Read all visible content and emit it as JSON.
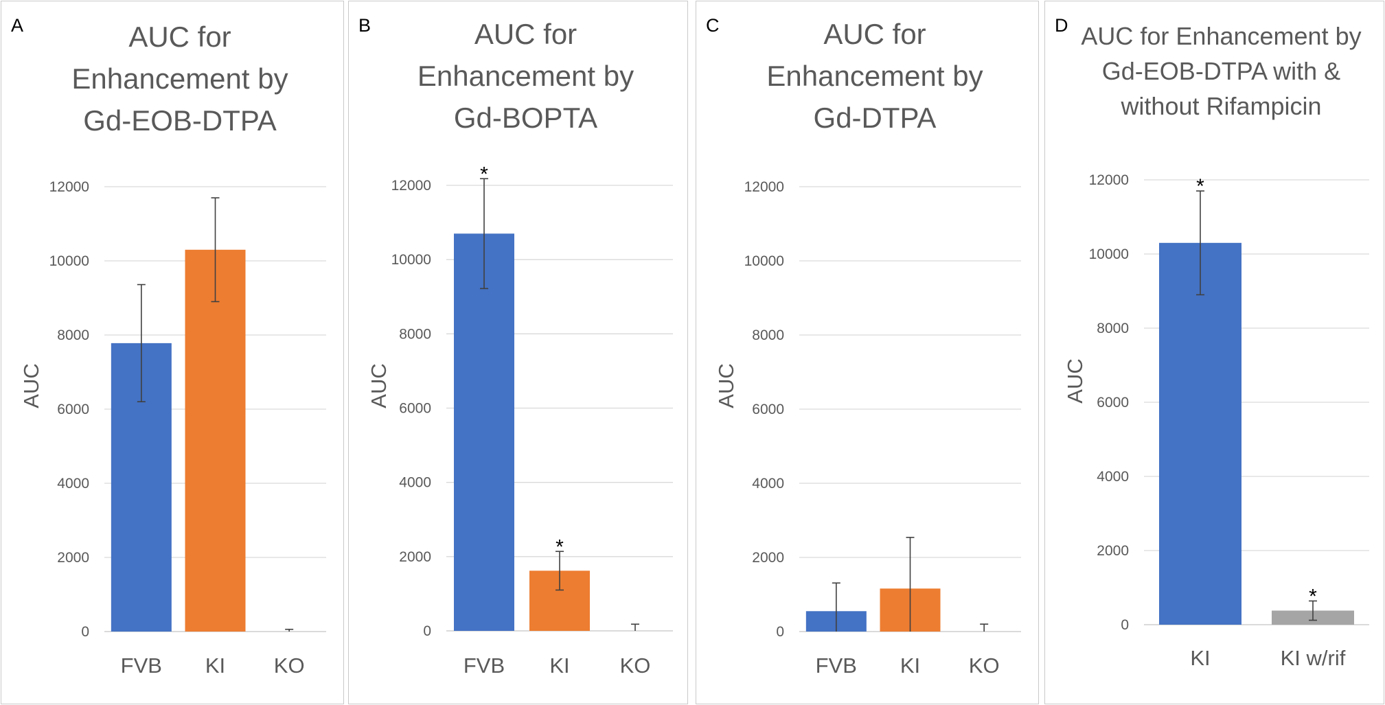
{
  "colors": {
    "fvb": "#4472C4",
    "ki": "#ED7D31",
    "gray": "#A5A5A5",
    "grid": "#d9d9d9",
    "axis": "#595959"
  },
  "chart_data": [
    {
      "type": "bar",
      "panel": "A",
      "title": "AUC for Enhancement by Gd-EOB-DTPA",
      "ylabel": "AUC",
      "ylim": [
        0,
        12000
      ],
      "yticks": [
        0,
        2000,
        4000,
        6000,
        8000,
        10000,
        12000
      ],
      "categories": [
        "FVB",
        "KI",
        "KO"
      ],
      "values": [
        7780,
        10300,
        0
      ],
      "errors": [
        1580,
        1400,
        60
      ],
      "markers": [
        "",
        "",
        ""
      ],
      "colors": [
        "#4472C4",
        "#ED7D31",
        "#A5A5A5"
      ]
    },
    {
      "type": "bar",
      "panel": "B",
      "title": "AUC for Enhancement by Gd-BOPTA",
      "ylabel": "AUC",
      "ylim": [
        0,
        12000
      ],
      "yticks": [
        0,
        2000,
        4000,
        6000,
        8000,
        10000,
        12000
      ],
      "categories": [
        "FVB",
        "KI",
        "KO"
      ],
      "values": [
        10700,
        1620,
        0
      ],
      "errors": [
        1480,
        520,
        180
      ],
      "markers": [
        "*",
        "*",
        ""
      ],
      "colors": [
        "#4472C4",
        "#ED7D31",
        "#A5A5A5"
      ]
    },
    {
      "type": "bar",
      "panel": "C",
      "title": "AUC for Enhancement by Gd-DTPA",
      "ylabel": "AUC",
      "ylim": [
        0,
        12000
      ],
      "yticks": [
        0,
        2000,
        4000,
        6000,
        8000,
        10000,
        12000
      ],
      "categories": [
        "FVB",
        "KI",
        "KO"
      ],
      "values": [
        550,
        1160,
        0
      ],
      "errors": [
        760,
        1380,
        200
      ],
      "markers": [
        "",
        "",
        ""
      ],
      "colors": [
        "#4472C4",
        "#ED7D31",
        "#A5A5A5"
      ]
    },
    {
      "type": "bar",
      "panel": "D",
      "title": "AUC for Enhancement by Gd-EOB-DTPA with & without Rifampicin",
      "ylabel": "AUC",
      "ylim": [
        0,
        12000
      ],
      "yticks": [
        0,
        2000,
        4000,
        6000,
        8000,
        10000,
        12000
      ],
      "categories": [
        "KI",
        "KI w/rif"
      ],
      "values": [
        10300,
        380
      ],
      "errors": [
        1400,
        260
      ],
      "markers": [
        "*",
        "*"
      ],
      "colors": [
        "#4472C4",
        "#A5A5A5"
      ]
    }
  ]
}
